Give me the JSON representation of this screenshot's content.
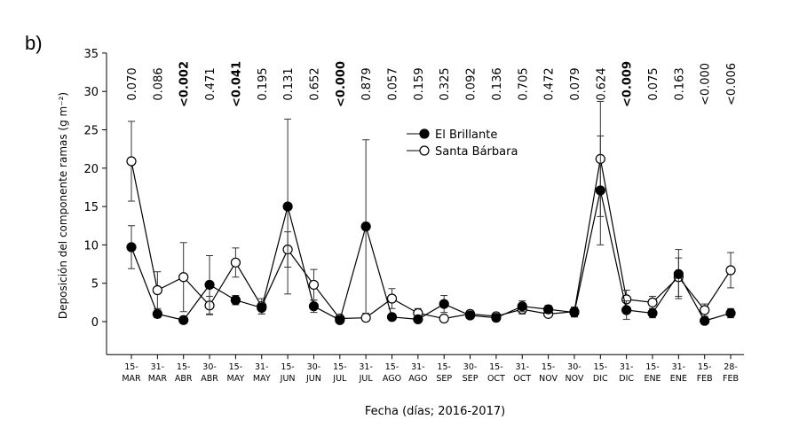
{
  "panel_label": "b)",
  "chart_data": {
    "type": "line",
    "title": "",
    "xlabel": "Fecha (días; 2016-2017)",
    "ylabel": "Deposición del componente ramas (g m⁻²)",
    "ylim": [
      -4.3,
      35
    ],
    "yticks": [
      0,
      5,
      10,
      15,
      20,
      25,
      30,
      35
    ],
    "legend_position": "top-center",
    "categories": [
      [
        "15-",
        "MAR"
      ],
      [
        "31-",
        "MAR"
      ],
      [
        "15-",
        "ABR"
      ],
      [
        "30-",
        "ABR"
      ],
      [
        "15-",
        "MAY"
      ],
      [
        "31-",
        "MAY"
      ],
      [
        "15-",
        "JUN"
      ],
      [
        "30-",
        "JUN"
      ],
      [
        "15-",
        "JUL"
      ],
      [
        "31-",
        "JUL"
      ],
      [
        "15-",
        "AGO"
      ],
      [
        "31-",
        "AGO"
      ],
      [
        "15-",
        "SEP"
      ],
      [
        "30-",
        "SEP"
      ],
      [
        "15-",
        "OCT"
      ],
      [
        "31-",
        "OCT"
      ],
      [
        "15-",
        "NOV"
      ],
      [
        "30-",
        "NOV"
      ],
      [
        "15-",
        "DIC"
      ],
      [
        "31-",
        "DIC"
      ],
      [
        "15-",
        "ENE"
      ],
      [
        "31-",
        "ENE"
      ],
      [
        "15-",
        "FEB"
      ],
      [
        "28-",
        "FEB"
      ]
    ],
    "p_values": [
      "0.070",
      "0.086",
      "<0.002",
      "0.471",
      "<0.041",
      "0.195",
      "0.131",
      "0.652",
      "<0.000",
      "0.879",
      "0.057",
      "0.159",
      "0.325",
      "0.092",
      "0.136",
      "0.705",
      "0.472",
      "0.079",
      "0.624",
      "<0.009",
      "0.075",
      "0.163",
      "<0.000",
      "<0.006"
    ],
    "p_bold": [
      false,
      false,
      true,
      false,
      true,
      false,
      false,
      false,
      true,
      false,
      false,
      false,
      false,
      false,
      false,
      false,
      false,
      false,
      false,
      true,
      false,
      false,
      false,
      false
    ],
    "series": [
      {
        "name": "El Brillante",
        "marker": "filled",
        "values": [
          9.7,
          1.0,
          0.2,
          4.8,
          2.8,
          1.8,
          15.0,
          2.0,
          0.2,
          12.4,
          0.6,
          0.3,
          2.3,
          0.8,
          0.5,
          2.0,
          1.6,
          1.2,
          17.1,
          1.5,
          1.1,
          6.2,
          0.1,
          1.1
        ],
        "errors": [
          2.8,
          0.5,
          0.2,
          3.8,
          0.6,
          0.8,
          11.4,
          0.8,
          0.2,
          11.3,
          0.3,
          0.3,
          1.1,
          0.4,
          0.4,
          0.7,
          0.5,
          0.6,
          7.1,
          1.2,
          0.6,
          3.2,
          0.2,
          0.6
        ]
      },
      {
        "name": "Santa Bárbara",
        "marker": "open",
        "values": [
          20.9,
          4.1,
          5.8,
          2.1,
          7.7,
          2.0,
          9.4,
          4.8,
          0.4,
          0.5,
          3.0,
          1.1,
          0.4,
          1.0,
          0.7,
          1.6,
          1.0,
          1.3,
          21.2,
          2.9,
          2.5,
          5.8,
          1.5,
          6.7
        ],
        "errors": [
          5.2,
          2.4,
          4.5,
          1.2,
          1.9,
          1.0,
          2.3,
          2.0,
          0.2,
          0.3,
          1.3,
          0.6,
          0.3,
          0.4,
          0.3,
          0.6,
          0.4,
          0.6,
          7.5,
          1.2,
          0.8,
          2.5,
          0.8,
          2.3
        ]
      }
    ]
  }
}
